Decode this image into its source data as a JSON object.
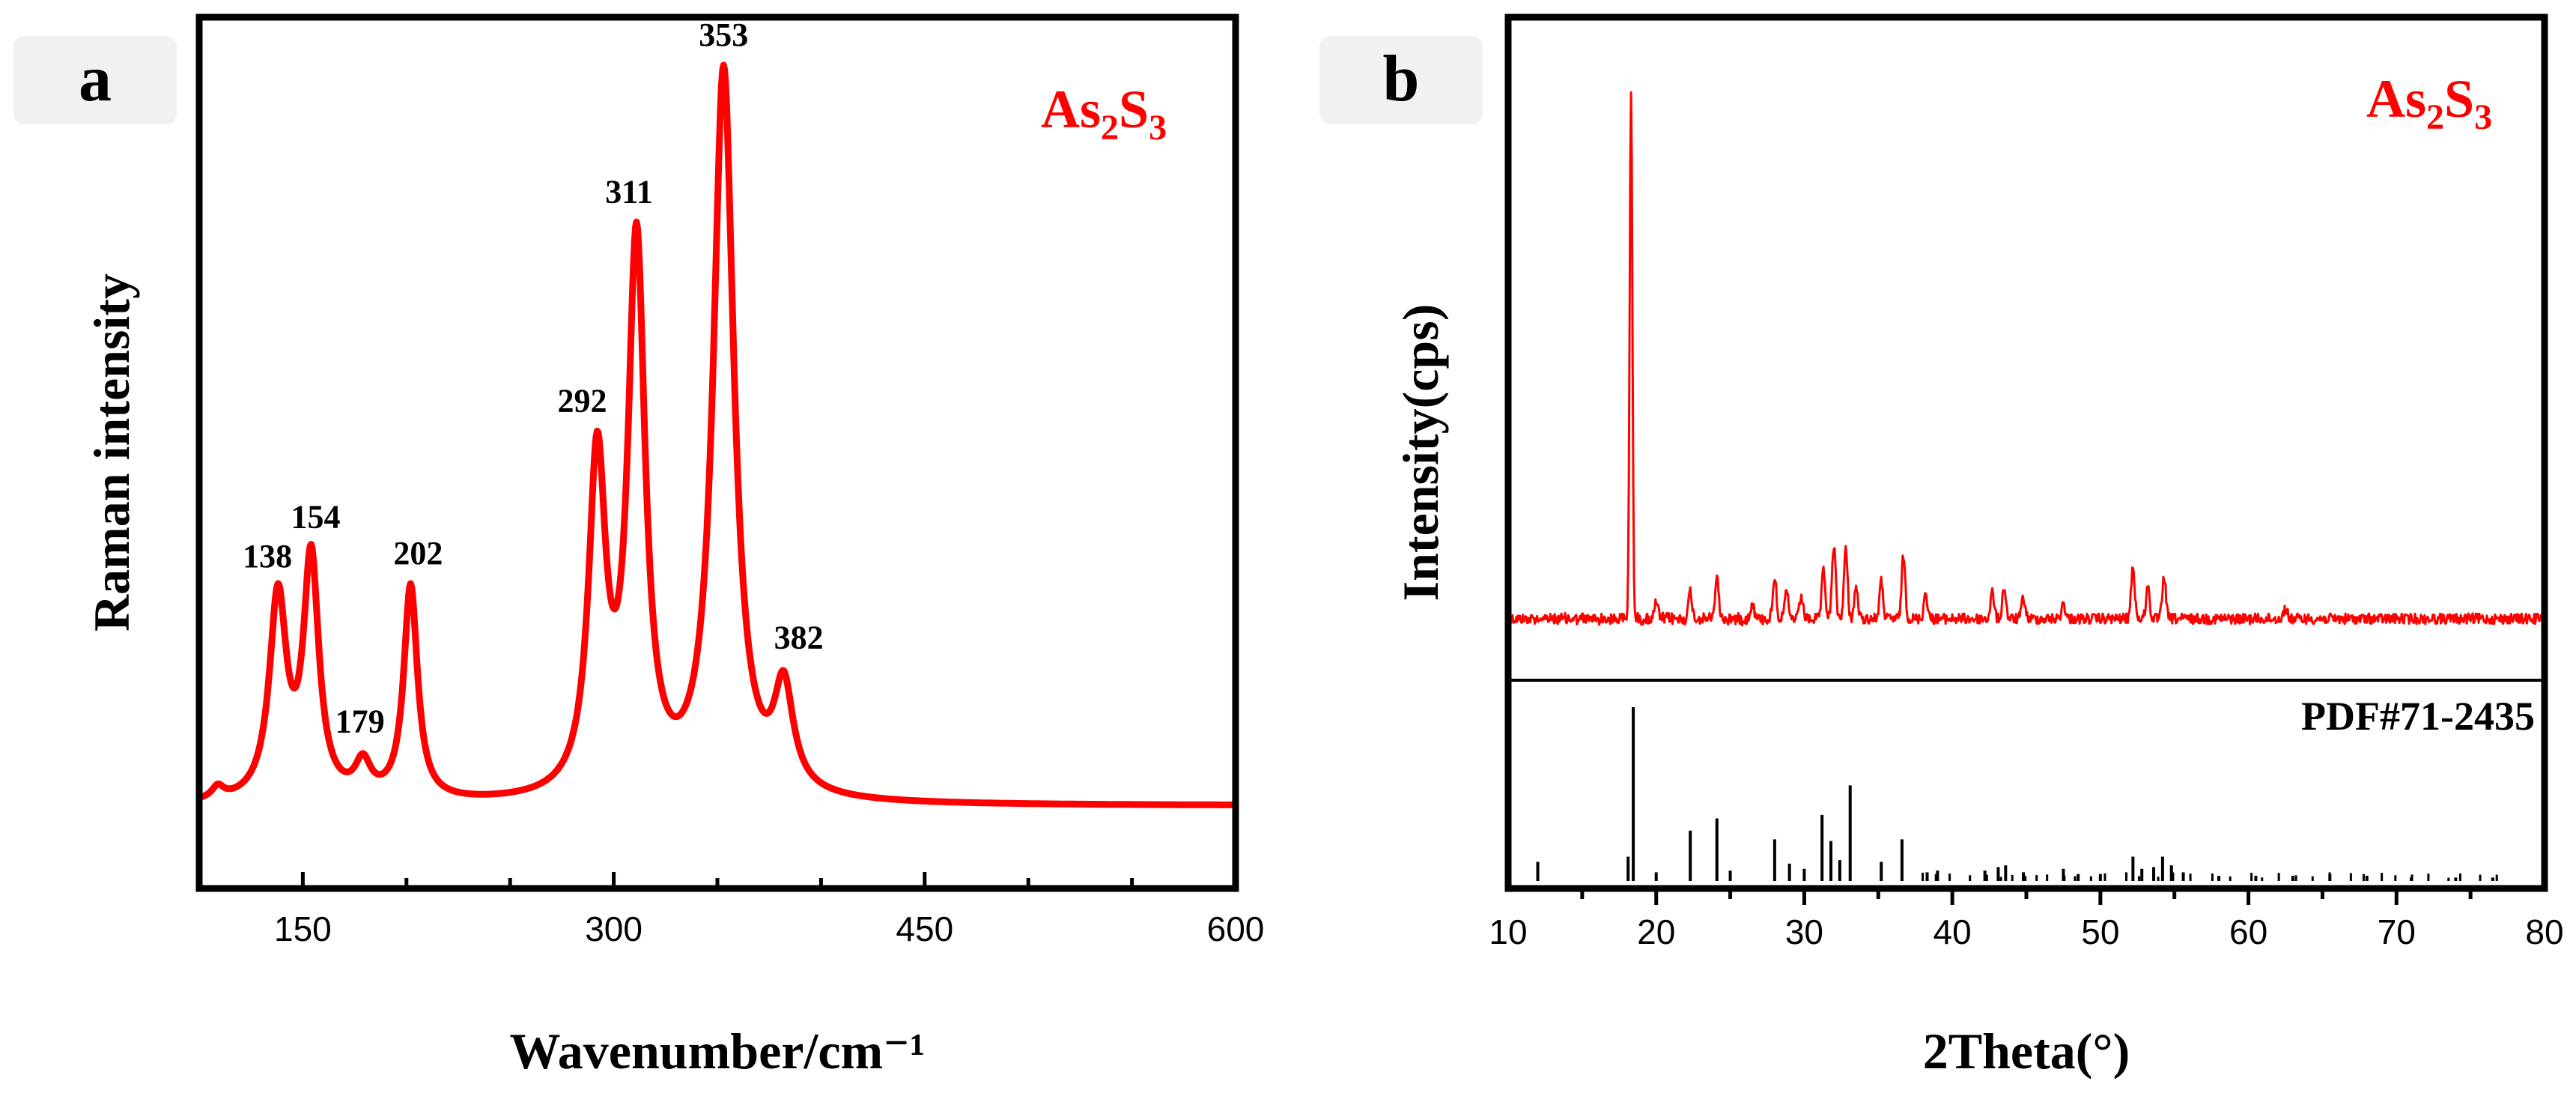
{
  "chart_data": [
    {
      "panel": "a",
      "type": "line",
      "compound": {
        "base": "As",
        "sub1": "2",
        "mid": "S",
        "sub2": "3"
      },
      "xlabel": "Wavenumber/cm⁻¹",
      "ylabel": "Raman intensity",
      "xlim": [
        100,
        600
      ],
      "ylim": [
        0,
        1
      ],
      "xticks": [
        150,
        300,
        450,
        600
      ],
      "series_color": "#ff0000",
      "baseline": 0.095,
      "peaks": [
        {
          "x": 109,
          "y": 0.12,
          "label": ""
        },
        {
          "x": 138,
          "y": 0.35,
          "label": "138"
        },
        {
          "x": 154,
          "y": 0.395,
          "label": "154"
        },
        {
          "x": 179,
          "y": 0.155,
          "label": "179"
        },
        {
          "x": 202,
          "y": 0.35,
          "label": "202"
        },
        {
          "x": 292,
          "y": 0.525,
          "label": "292"
        },
        {
          "x": 311,
          "y": 0.765,
          "label": "311"
        },
        {
          "x": 353,
          "y": 0.945,
          "label": "353"
        },
        {
          "x": 382,
          "y": 0.25,
          "label": "382"
        }
      ]
    },
    {
      "panel": "b",
      "type": "line",
      "compound": {
        "base": "As",
        "sub1": "2",
        "mid": "S",
        "sub2": "3"
      },
      "xlabel": "2Theta(°)",
      "ylabel": "Intensity(cps)",
      "xlim": [
        10,
        80
      ],
      "xticks": [
        10,
        20,
        30,
        40,
        50,
        60,
        70,
        80
      ],
      "series_color": "#ff0000",
      "measured_peaks": [
        {
          "x": 18.3,
          "h": 1.0
        },
        {
          "x": 20.0,
          "h": 0.03
        },
        {
          "x": 22.3,
          "h": 0.05
        },
        {
          "x": 24.1,
          "h": 0.08
        },
        {
          "x": 26.5,
          "h": 0.03
        },
        {
          "x": 28.0,
          "h": 0.08
        },
        {
          "x": 28.8,
          "h": 0.05
        },
        {
          "x": 29.8,
          "h": 0.04
        },
        {
          "x": 31.3,
          "h": 0.09
        },
        {
          "x": 32.0,
          "h": 0.14
        },
        {
          "x": 32.8,
          "h": 0.13
        },
        {
          "x": 33.5,
          "h": 0.06
        },
        {
          "x": 35.2,
          "h": 0.07
        },
        {
          "x": 36.7,
          "h": 0.12
        },
        {
          "x": 38.2,
          "h": 0.05
        },
        {
          "x": 42.7,
          "h": 0.05
        },
        {
          "x": 43.5,
          "h": 0.06
        },
        {
          "x": 44.8,
          "h": 0.04
        },
        {
          "x": 47.5,
          "h": 0.03
        },
        {
          "x": 52.2,
          "h": 0.1
        },
        {
          "x": 53.2,
          "h": 0.06
        },
        {
          "x": 54.3,
          "h": 0.08
        },
        {
          "x": 62.5,
          "h": 0.02
        }
      ],
      "reference_label": "PDF#71-2435",
      "reference_lines": [
        {
          "x": 12.0,
          "h": 0.11
        },
        {
          "x": 18.1,
          "h": 0.14
        },
        {
          "x": 18.45,
          "h": 1.0
        },
        {
          "x": 20.0,
          "h": 0.05
        },
        {
          "x": 22.3,
          "h": 0.29
        },
        {
          "x": 24.1,
          "h": 0.36
        },
        {
          "x": 25.0,
          "h": 0.06
        },
        {
          "x": 28.0,
          "h": 0.24
        },
        {
          "x": 29.0,
          "h": 0.1
        },
        {
          "x": 30.0,
          "h": 0.07
        },
        {
          "x": 31.2,
          "h": 0.38
        },
        {
          "x": 31.8,
          "h": 0.23
        },
        {
          "x": 32.4,
          "h": 0.12
        },
        {
          "x": 33.1,
          "h": 0.55
        },
        {
          "x": 35.2,
          "h": 0.11
        },
        {
          "x": 36.6,
          "h": 0.24
        },
        {
          "x": 38.3,
          "h": 0.05
        },
        {
          "x": 39.0,
          "h": 0.06
        },
        {
          "x": 42.2,
          "h": 0.06
        },
        {
          "x": 43.1,
          "h": 0.08
        },
        {
          "x": 43.6,
          "h": 0.09
        },
        {
          "x": 44.8,
          "h": 0.05
        },
        {
          "x": 47.5,
          "h": 0.07
        },
        {
          "x": 48.5,
          "h": 0.04
        },
        {
          "x": 50.0,
          "h": 0.04
        },
        {
          "x": 52.2,
          "h": 0.14
        },
        {
          "x": 52.8,
          "h": 0.07
        },
        {
          "x": 53.6,
          "h": 0.08
        },
        {
          "x": 54.2,
          "h": 0.14
        },
        {
          "x": 54.8,
          "h": 0.09
        },
        {
          "x": 55.6,
          "h": 0.05
        },
        {
          "x": 58.0,
          "h": 0.03
        },
        {
          "x": 60.5,
          "h": 0.03
        },
        {
          "x": 63.0,
          "h": 0.03
        },
        {
          "x": 65.5,
          "h": 0.04
        },
        {
          "x": 68.0,
          "h": 0.03
        },
        {
          "x": 71.0,
          "h": 0.02
        },
        {
          "x": 74.0,
          "h": 0.02
        },
        {
          "x": 76.5,
          "h": 0.02
        }
      ]
    }
  ]
}
